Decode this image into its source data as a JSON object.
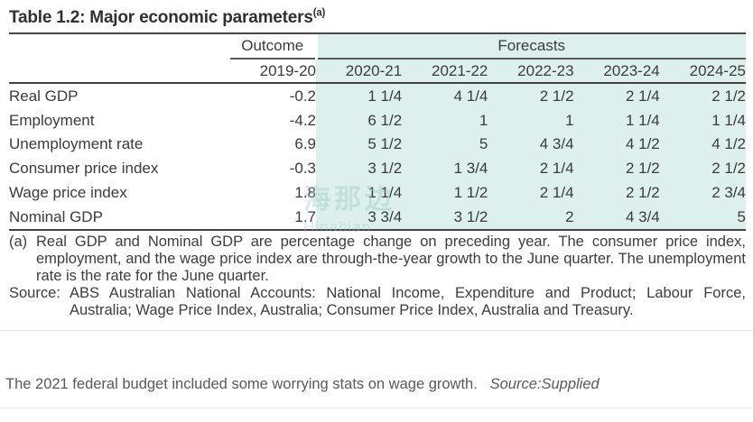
{
  "table": {
    "title": "Table 1.2: Major economic parameters",
    "title_superscript": "(a)",
    "group_headers": {
      "outcome": "Outcome",
      "forecasts": "Forecasts"
    },
    "columns": [
      "2019-20",
      "2020-21",
      "2021-22",
      "2022-23",
      "2023-24",
      "2024-25"
    ],
    "rows": [
      {
        "label": "Real GDP",
        "values": [
          "-0.2",
          "1 1/4",
          "4 1/4",
          "2 1/2",
          "2 1/4",
          "2 1/2"
        ]
      },
      {
        "label": "Employment",
        "values": [
          "-4.2",
          "6 1/2",
          "1",
          "1",
          "1 1/4",
          "1 1/4"
        ]
      },
      {
        "label": "Unemployment rate",
        "values": [
          "6.9",
          "5 1/2",
          "5",
          "4 3/4",
          "4 1/2",
          "4 1/2"
        ]
      },
      {
        "label": "Consumer price index",
        "values": [
          "-0.3",
          "3 1/2",
          "1 3/4",
          "2 1/4",
          "2 1/2",
          "2 1/2"
        ]
      },
      {
        "label": "Wage price index",
        "values": [
          "1.8",
          "1 1/4",
          "1 1/2",
          "2 1/4",
          "2 1/2",
          "2 3/4"
        ]
      },
      {
        "label": "Nominal GDP",
        "values": [
          "1.7",
          "3 3/4",
          "3 1/2",
          "2",
          "4 3/4",
          "5"
        ]
      }
    ],
    "footnote_marker": "(a)",
    "footnote_text": "Real GDP and Nominal GDP are percentage change on preceding year. The consumer price index, employment, and the wage price index are through-the-year growth to the June quarter. The unemployment rate is the rate for the June quarter.",
    "source_label": "Source:",
    "source_text": "ABS Australian National Accounts: National Income, Expenditure and Product; Labour Force, Australia; Wage Price Index, Australia; Consumer Price Index, Australia and Treasury."
  },
  "watermark": {
    "cjk": "海那边",
    "latin": "Hinabian"
  },
  "caption": {
    "text": "The 2021 federal budget included some worrying stats on wage growth.",
    "source": "Source:Supplied"
  },
  "colors": {
    "forecast_background": "#def0ee",
    "rule": "#424242",
    "table_text": "#3b3b3b",
    "caption_text": "#595959"
  }
}
